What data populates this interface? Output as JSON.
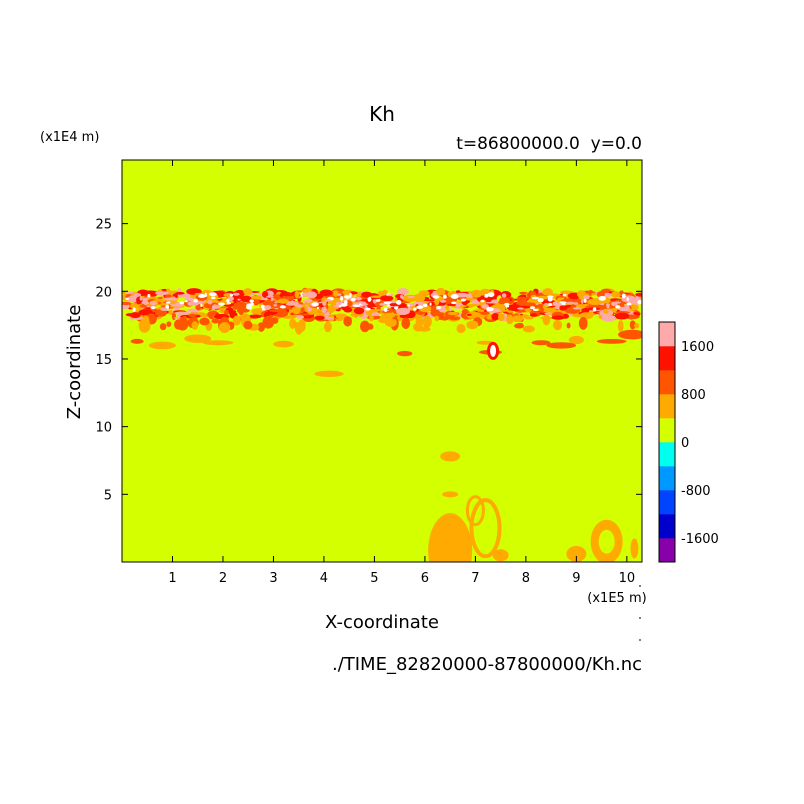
{
  "chart_data": {
    "type": "heatmap",
    "title": "Kh",
    "subtitle": "t=86800000.0  y=0.0",
    "xlabel": "X-coordinate",
    "ylabel": "Z-coordinate",
    "x_units": "(x1E5 m)",
    "y_units": "(x1E4 m)",
    "source_file": "./TIME_82820000-87800000/Kh.nc",
    "xlim": [
      0,
      10.3
    ],
    "ylim": [
      0,
      29.7
    ],
    "x_ticks": [
      1,
      2,
      3,
      4,
      5,
      6,
      7,
      8,
      9,
      10
    ],
    "y_ticks": [
      5,
      10,
      15,
      20,
      25
    ],
    "background_level": "0 to 400",
    "colorbar": {
      "levels": [
        -2000,
        -1600,
        -1200,
        -800,
        -400,
        0,
        400,
        800,
        1200,
        1600,
        2000
      ],
      "tick_labels": [
        -1600,
        -800,
        0,
        800,
        1600
      ],
      "colors": [
        "#8800aa",
        "#0000cc",
        "#0044ff",
        "#0099ff",
        "#00ffee",
        "#d4ff00",
        "#ffaa00",
        "#ff5500",
        "#ff1100",
        "#ffaaaa"
      ]
    },
    "features": [
      {
        "band": "turbulent layer",
        "z_range": [
          17.5,
          20
        ],
        "levels": "400 to 2000+"
      },
      {
        "band": "lower patches",
        "z_range": [
          14,
          17
        ],
        "levels": "400 to 1600"
      },
      {
        "band": "surface plumes",
        "z_range": [
          0,
          8.5
        ],
        "levels": "400 to 800"
      }
    ]
  }
}
